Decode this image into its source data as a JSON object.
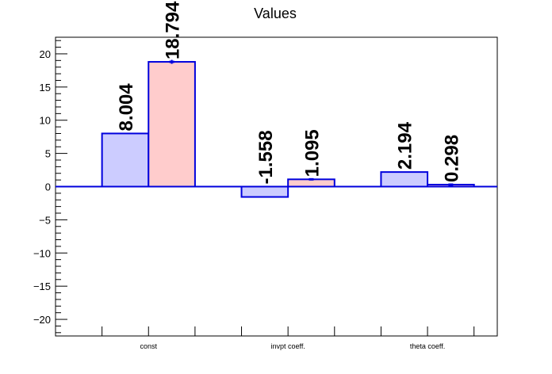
{
  "chart_data": {
    "type": "bar",
    "title": "Values",
    "categories": [
      "const",
      "invpt coeff.",
      "theta coeff."
    ],
    "series": [
      {
        "values": [
          8.004,
          -1.558,
          2.194
        ],
        "labels": [
          "8.004",
          "-1.558",
          "2.194"
        ],
        "errors": [
          0,
          0,
          0
        ],
        "fill": "#ccccff",
        "stroke": "#0000dd"
      },
      {
        "values": [
          18.794,
          1.095,
          0.298
        ],
        "labels": [
          "18.794",
          "1.095",
          "0.298"
        ],
        "errors": [
          0.3,
          0.15,
          0.15
        ],
        "fill": "#ffcccc",
        "stroke": "#0000dd"
      }
    ],
    "xlabel": "",
    "ylabel": "",
    "ylim": [
      -22.5,
      22.5
    ],
    "y_ticks": [
      -20,
      -15,
      -10,
      -5,
      0,
      5,
      10,
      15,
      20
    ],
    "y_tick_labels": [
      "−20",
      "−15",
      "−10",
      "−5",
      "0",
      "5",
      "10",
      "15",
      "20"
    ],
    "grid": false,
    "legend": "none",
    "colors": {
      "axis": "#000000",
      "bar_edge": "#0000dd",
      "series1_fill": "#ccccff",
      "series2_fill": "#ffcccc"
    }
  }
}
